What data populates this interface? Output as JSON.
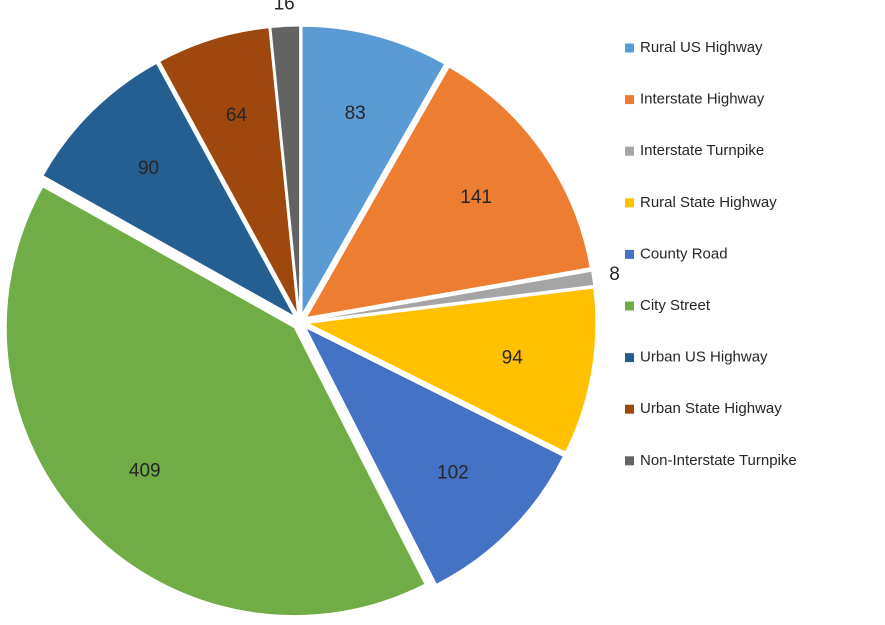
{
  "chart_data": {
    "type": "pie",
    "categories": [
      "Rural US Highway",
      "Interstate Highway",
      "Interstate Turnpike",
      "Rural State Highway",
      "County Road",
      "City Street",
      "Urban US Highway",
      "Urban State Highway",
      "Non-Interstate Turnpike"
    ],
    "values": [
      83,
      141,
      8,
      94,
      102,
      409,
      90,
      64,
      16
    ],
    "colors": [
      "#5b9bd5",
      "#ed7d31",
      "#a5a5a5",
      "#ffc000",
      "#4472c4",
      "#70ad47",
      "#255e91",
      "#9e480e",
      "#636363"
    ],
    "legend": "right"
  }
}
